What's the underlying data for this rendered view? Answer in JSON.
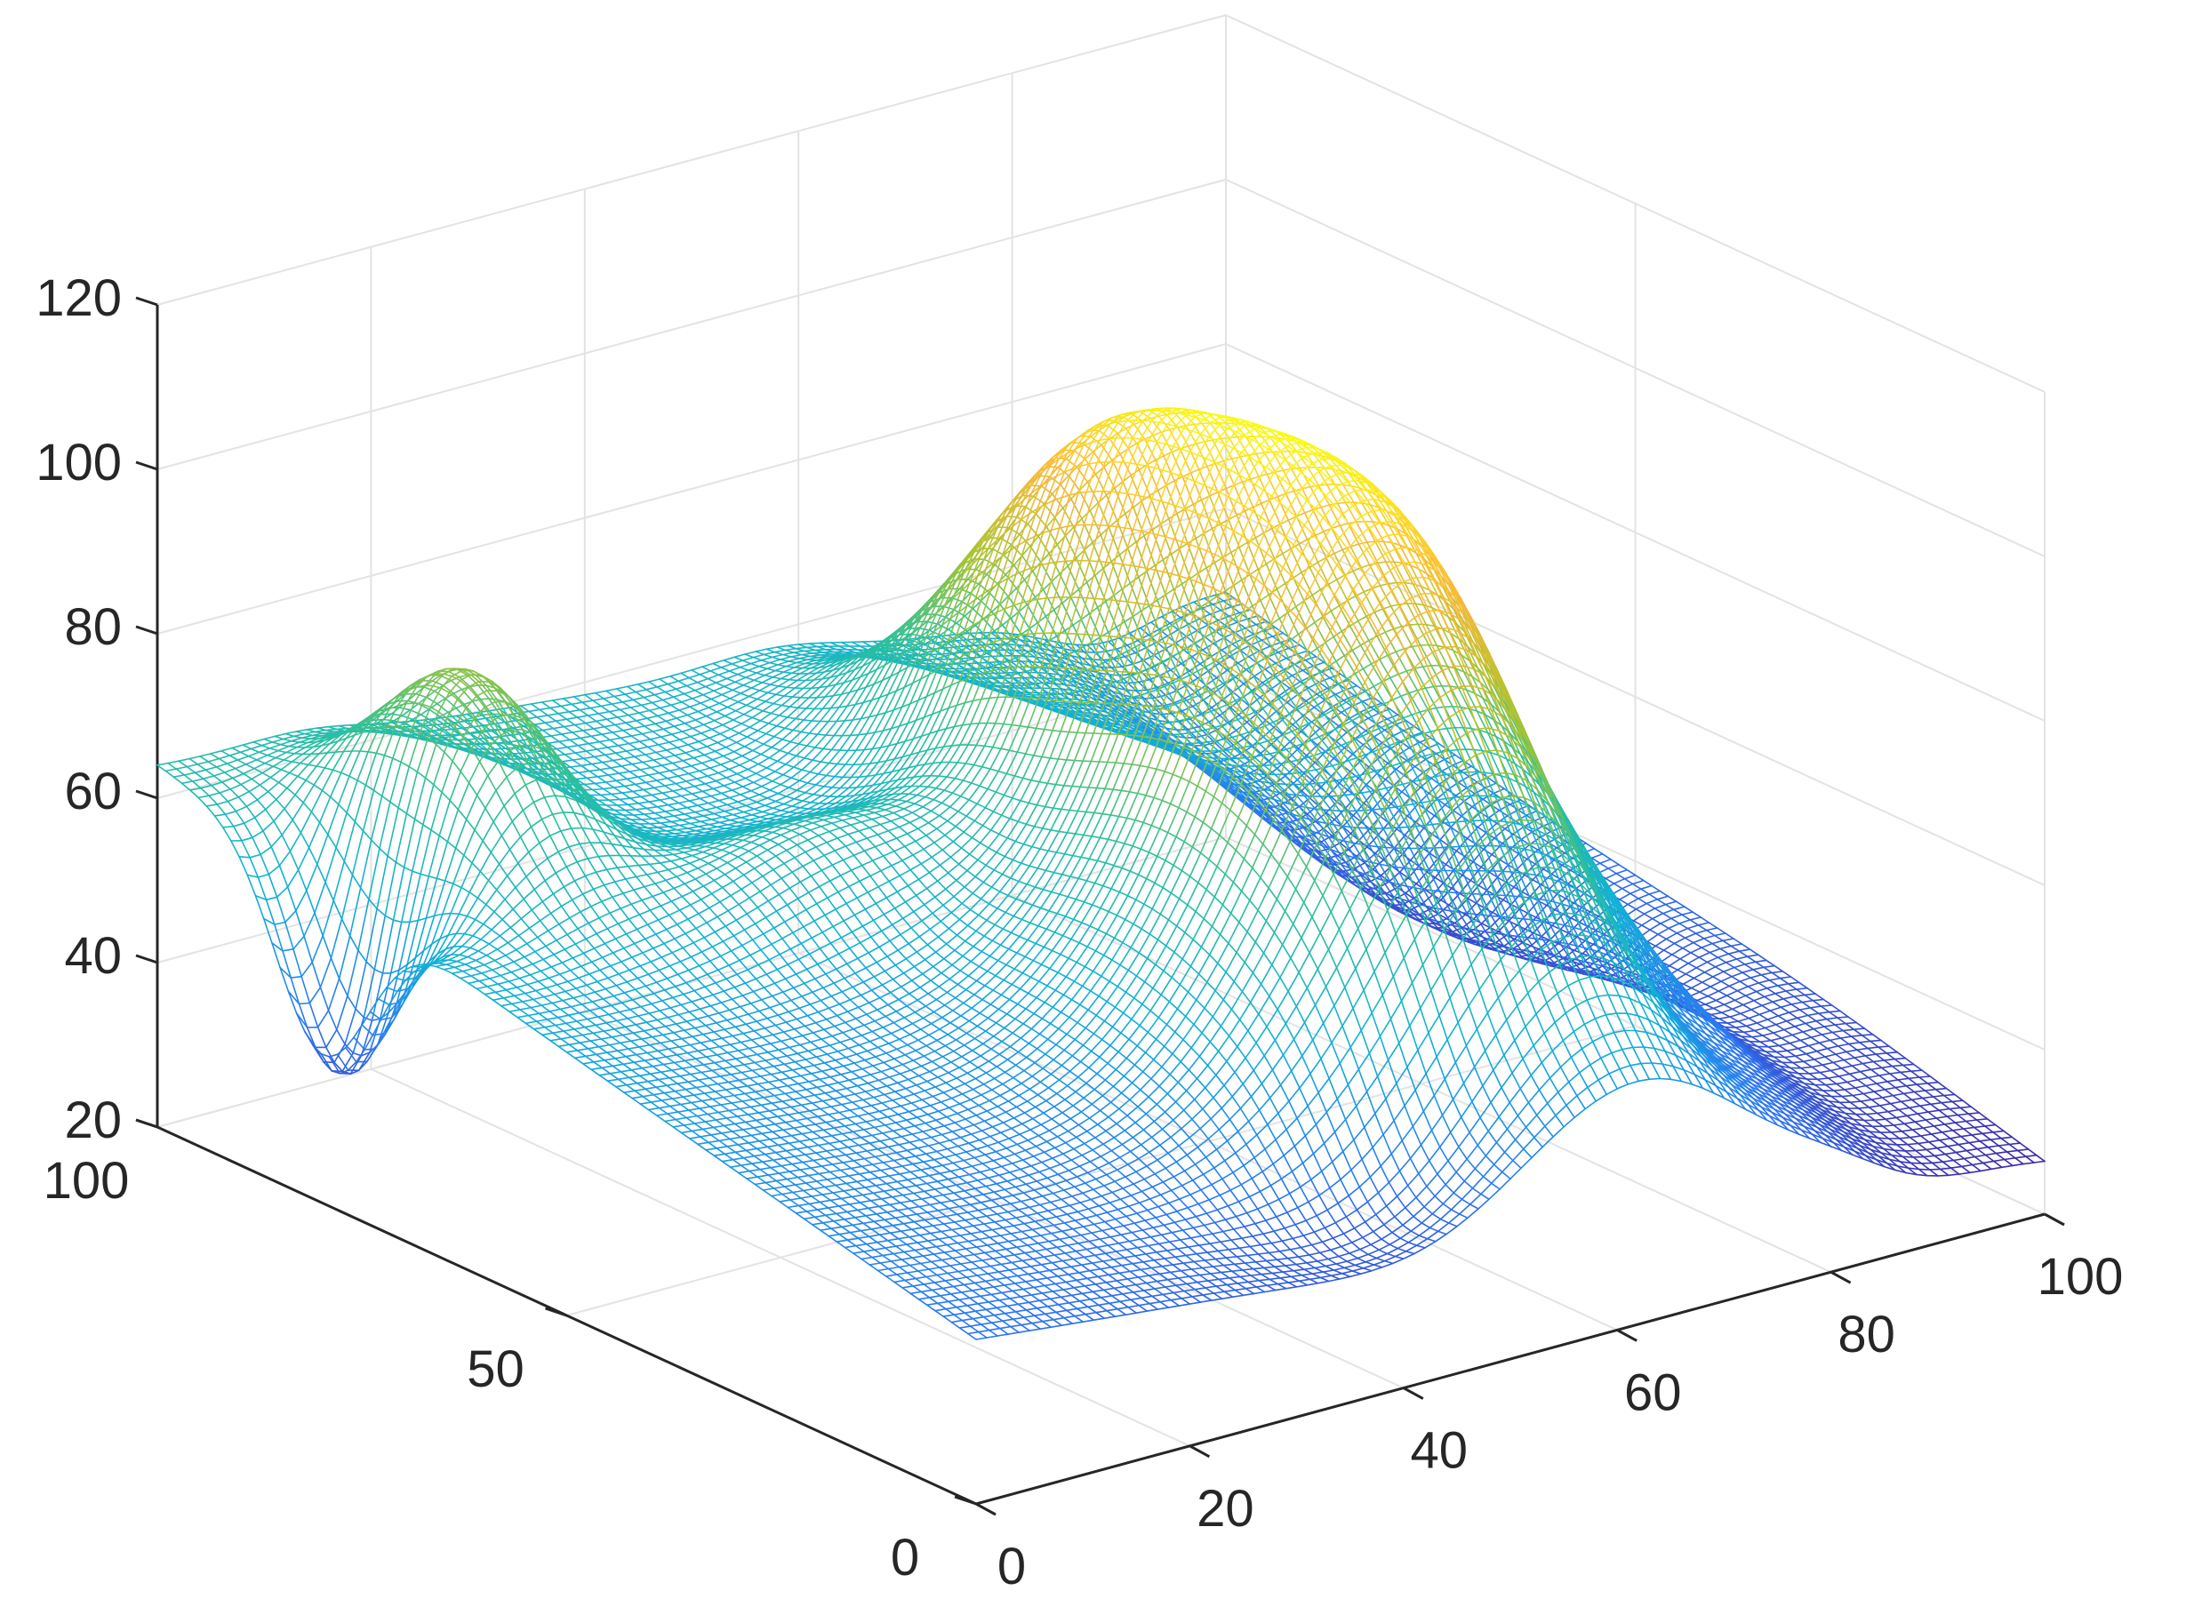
{
  "chart_data": {
    "type": "surface",
    "style": "mesh",
    "colormap": "parula",
    "colormap_stops": [
      "#3e26a8",
      "#2c77f3",
      "#12b1d6",
      "#2ec09a",
      "#a6c430",
      "#fbb93a",
      "#f9fb15"
    ],
    "title": "",
    "xlabel": "",
    "ylabel": "",
    "zlabel": "",
    "xlim": [
      0,
      100
    ],
    "ylim": [
      0,
      100
    ],
    "zlim": [
      20,
      120
    ],
    "x_ticks": [
      0,
      20,
      40,
      60,
      80,
      100
    ],
    "x_tick_labels": [
      "0",
      "20",
      "40",
      "60",
      "80",
      "100"
    ],
    "y_ticks": [
      0,
      50,
      100
    ],
    "y_tick_labels": [
      "0",
      "50",
      "100"
    ],
    "z_ticks": [
      20,
      40,
      60,
      80,
      100,
      120
    ],
    "z_tick_labels": [
      "20",
      "40",
      "60",
      "80",
      "100",
      "120"
    ],
    "grid": true,
    "mesh_resolution": 100,
    "surface_samples": {
      "description": "approximate z at sample (x, y) points of the mesh",
      "points": [
        {
          "x": 0,
          "y": 100,
          "z": 68
        },
        {
          "x": 0,
          "y": 0,
          "z": 38
        },
        {
          "x": 2,
          "y": 78,
          "z": 56
        },
        {
          "x": 12,
          "y": 82,
          "z": 77
        },
        {
          "x": 32,
          "y": 65,
          "z": 69
        },
        {
          "x": 44,
          "y": 2,
          "z": 30
        },
        {
          "x": 62,
          "y": 38,
          "z": 102
        },
        {
          "x": 62,
          "y": 58,
          "z": 82
        },
        {
          "x": 75,
          "y": 20,
          "z": 33
        },
        {
          "x": 86,
          "y": 60,
          "z": 38
        },
        {
          "x": 97,
          "y": 85,
          "z": 37
        },
        {
          "x": 100,
          "y": 0,
          "z": 26
        },
        {
          "x": 100,
          "y": 100,
          "z": 46
        }
      ]
    }
  }
}
